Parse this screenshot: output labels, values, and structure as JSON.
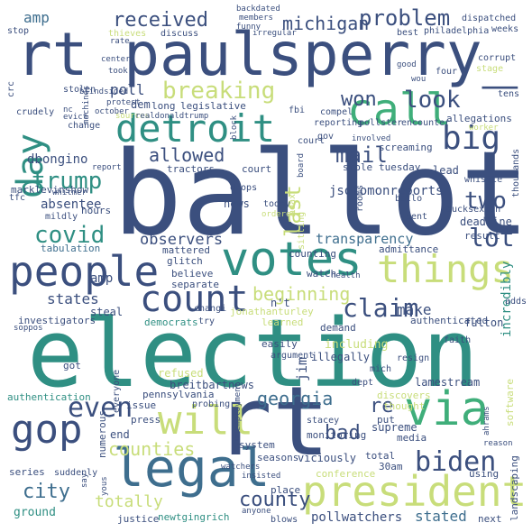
{
  "palette": {
    "navy": "#3b4f7e",
    "blue": "#3e6e8e",
    "teal": "#2f8f83",
    "green": "#3fae7a",
    "lime": "#c8dd7a",
    "yellow": "#dfe77a",
    "slate": "#4b6389"
  },
  "words": {
    "ballot": "ballot",
    "election": "election",
    "paulsperry": "rt paulsperry_",
    "rt": "rt",
    "votes": "votes",
    "legal": "legal",
    "people": "people",
    "president": "president",
    "detroit": "detroit",
    "call": "call",
    "things": "things",
    "count": "count",
    "via": "via",
    "will": "will",
    "gop": "gop",
    "big": "big",
    "biden": "biden",
    "even": "even",
    "breaking": "breaking",
    "day": "day",
    "trump": "trump",
    "covid": "covid",
    "claim": "claim",
    "georgia": "georgia",
    "county": "county",
    "received": "received",
    "michigan": "michigan",
    "problem": "problem",
    "mail": "mail",
    "look": "look",
    "won": "won",
    "last": "last",
    "two": "two",
    "lot": "lot",
    "observers": "observers",
    "transparency": "transparency",
    "beginning": "beginning",
    "allowed": "allowed",
    "counties": "counties",
    "city": "city",
    "bad": "bad",
    "re": "re",
    "totally": "totally",
    "stated": "stated",
    "pollwatchers": "pollwatchers",
    "jsolomonreports": "jsolomonreports",
    "dbongino": "dbongino",
    "states": "states",
    "make": "make",
    "amp1": "amp",
    "amp2": "amp",
    "poll": "poll",
    "jim": "jim",
    "incredibly": "incredibly",
    "absentee": "absentee",
    "marklevinshow": "marklevinshow",
    "tabulation": "tabulation",
    "deadline": "deadline",
    "result": "result",
    "separate": "separate",
    "glitch": "glitch",
    "mattered": "mattered",
    "believe": "believe",
    "nt": "n't",
    "democrats": "democrats",
    "jonathanturley": "jonathanturley",
    "including": "including",
    "illegally": "illegally",
    "refused": "refused",
    "authentication": "authentication",
    "breitbartnews": "breitbartnews",
    "lamestream": "lamestream",
    "fulton": "fulton",
    "authenticated": "authenticated",
    "system": "system",
    "monitoring": "monitoring",
    "supreme": "supreme",
    "viciously": "viciously",
    "seasons": "seasons",
    "total": "total",
    "d30am": "30am",
    "conference": "conference",
    "landscaping": "landscaping",
    "software": "software",
    "newtgingrich": "newtgingrich",
    "justice": "justice",
    "ground": "ground",
    "series": "series",
    "next": "next",
    "place": "place",
    "blows": "blows",
    "using": "using",
    "media": "media",
    "thought": "thought",
    "put": "put",
    "discovers": "discovers",
    "end": "end",
    "press": "press",
    "stacey": "stacey",
    "probing": "probing",
    "pennsylvania": "pennsylvania",
    "numerous": "numerous",
    "got": "got",
    "investigators": "investigators",
    "everyone": "everyone",
    "steal": "steal",
    "changi": "changi",
    "issue": "issue",
    "try": "try",
    "learned": "learned",
    "demand": "demand",
    "watch": "watch",
    "easily": "easily",
    "argument": "argument",
    "dept": "dept",
    "resign": "resign",
    "mich": "mich",
    "faith": "faith",
    "adds": "adds",
    "admittance": "admittance",
    "counting": "counting",
    "news": "news",
    "today": "today",
    "sitting": "sitting",
    "hoax": "hoax",
    "court1": "court",
    "court2": "court",
    "hours": "hours",
    "mildly": "mildly",
    "whitmer": "whitmer",
    "tfc": "tfc",
    "drops": "drops",
    "stole": "stole",
    "rooms": "rooms",
    "tuesday": "tuesday",
    "lead": "lead",
    "whistle": "whistle",
    "bucksexton": "bucksexton",
    "sent": "sent",
    "ballo": "ballo",
    "tractors": "tractors",
    "report": "report",
    "dem": "dem",
    "long": "long",
    "crudely": "crudely",
    "nc": "nc",
    "evict": "evict",
    "change": "change",
    "stolen": "stolen",
    "blindsided": "blindsided",
    "protest": "protest",
    "october": "october",
    "sources": "sources",
    "realdonaldtrump": "realdonaldtrump",
    "legislative": "legislative",
    "fbi": "fbi",
    "reporting": "reporting",
    "pollster": "pollster",
    "encounter": "encounter",
    "compel": "compel",
    "gov": "gov",
    "involved": "involved",
    "screaming": "screaming",
    "allegations": "allegations",
    "worker": "worker",
    "thousands": "thousands",
    "tens": "tens",
    "corrupt": "corrupt",
    "stage": "stage",
    "good": "good",
    "four": "four",
    "weeks": "weeks",
    "dispatched": "dispatched",
    "philadelphia": "philadelphia",
    "best": "best",
    "irregular": "irregular",
    "members": "members",
    "backdated": "backdated",
    "funny": "funny",
    "thieves": "thieves",
    "discuss": "discuss",
    "stop": "stop",
    "rate": "rate",
    "machines": "machines",
    "took": "took",
    "center": "center",
    "crc": "crc",
    "unemployment": "unemployment",
    "ahrams": "ahrams",
    "reason": "reason",
    "say": "say",
    "suddenly": "suddenly",
    "insisted": "insisted",
    "anyone": "anyone",
    "watchers": "watchers",
    "health": "health",
    "ordered": "ordered",
    "block": "block",
    "wou": "wou",
    "board": "board",
    "soppos": "soppos",
    "yous": "yous"
  }
}
